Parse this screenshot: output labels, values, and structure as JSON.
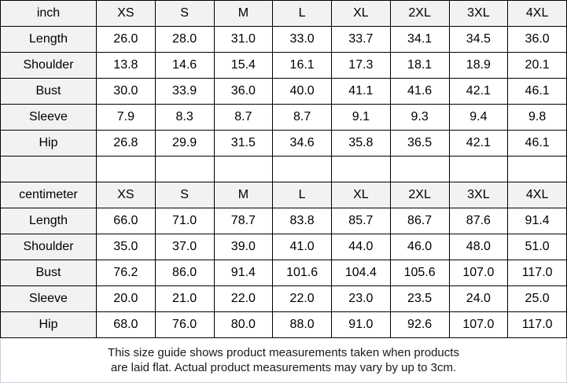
{
  "chart_data": {
    "type": "table",
    "sizes": [
      "XS",
      "S",
      "M",
      "L",
      "XL",
      "2XL",
      "3XL",
      "4XL"
    ],
    "tables": [
      {
        "unit": "inch",
        "rows": [
          {
            "label": "Length",
            "values": [
              "26.0",
              "28.0",
              "31.0",
              "33.0",
              "33.7",
              "34.1",
              "34.5",
              "36.0"
            ]
          },
          {
            "label": "Shoulder",
            "values": [
              "13.8",
              "14.6",
              "15.4",
              "16.1",
              "17.3",
              "18.1",
              "18.9",
              "20.1"
            ]
          },
          {
            "label": "Bust",
            "values": [
              "30.0",
              "33.9",
              "36.0",
              "40.0",
              "41.1",
              "41.6",
              "42.1",
              "46.1"
            ]
          },
          {
            "label": "Sleeve",
            "values": [
              "7.9",
              "8.3",
              "8.7",
              "8.7",
              "9.1",
              "9.3",
              "9.4",
              "9.8"
            ]
          },
          {
            "label": "Hip",
            "values": [
              "26.8",
              "29.9",
              "31.5",
              "34.6",
              "35.8",
              "36.5",
              "42.1",
              "46.1"
            ]
          }
        ]
      },
      {
        "unit": "centimeter",
        "rows": [
          {
            "label": "Length",
            "values": [
              "66.0",
              "71.0",
              "78.7",
              "83.8",
              "85.7",
              "86.7",
              "87.6",
              "91.4"
            ]
          },
          {
            "label": "Shoulder",
            "values": [
              "35.0",
              "37.0",
              "39.0",
              "41.0",
              "44.0",
              "46.0",
              "48.0",
              "51.0"
            ]
          },
          {
            "label": "Bust",
            "values": [
              "76.2",
              "86.0",
              "91.4",
              "101.6",
              "104.4",
              "105.6",
              "107.0",
              "117.0"
            ]
          },
          {
            "label": "Sleeve",
            "values": [
              "20.0",
              "21.0",
              "22.0",
              "22.0",
              "23.0",
              "23.5",
              "24.0",
              "25.0"
            ]
          },
          {
            "label": "Hip",
            "values": [
              "68.0",
              "76.0",
              "80.0",
              "88.0",
              "91.0",
              "92.6",
              "107.0",
              "117.0"
            ]
          }
        ]
      }
    ],
    "note_line1": "This size guide shows product measurements taken when products",
    "note_line2": "are laid flat. Actual product measurements may vary by up to 3cm."
  },
  "colors": {
    "header_bg": "#f2f2f2",
    "grid_border": "#000000",
    "soft_border": "#c8d3e1",
    "text": "#000000"
  }
}
